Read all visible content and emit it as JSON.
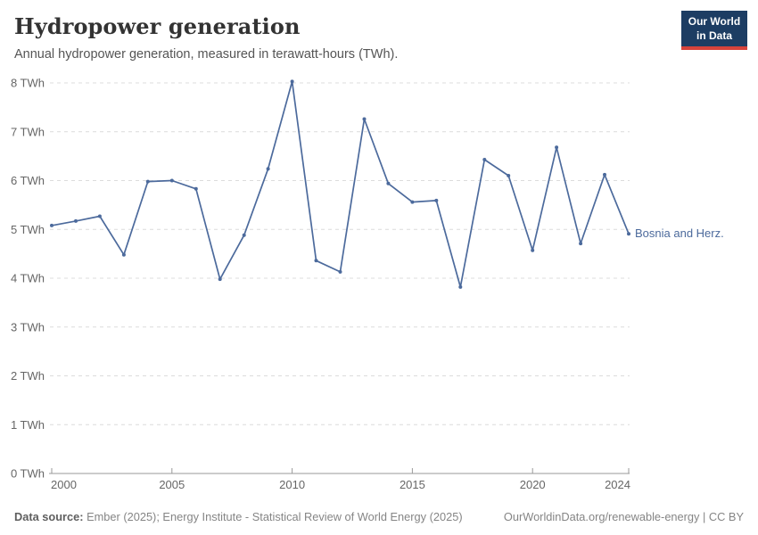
{
  "header": {
    "title": "Hydropower generation",
    "subtitle": "Annual hydropower generation, measured in terawatt-hours (TWh)."
  },
  "logo": {
    "line1": "Our World",
    "line2": "in Data",
    "bg_color": "#1d3d63",
    "accent_color": "#d7433b"
  },
  "chart_data": {
    "type": "line",
    "title": "Hydropower generation",
    "ylabel": "",
    "xlabel": "",
    "unit": "TWh",
    "grid": "horizontal-dashed",
    "legend_position": "end-of-line",
    "xlim": [
      2000,
      2024
    ],
    "ylim": [
      0,
      8
    ],
    "x_ticks": [
      2000,
      2005,
      2010,
      2015,
      2020,
      2024
    ],
    "y_ticks": [
      0,
      1,
      2,
      3,
      4,
      5,
      6,
      7,
      8
    ],
    "y_tick_suffix": " TWh",
    "x": [
      2000,
      2001,
      2002,
      2003,
      2004,
      2005,
      2006,
      2007,
      2008,
      2009,
      2010,
      2011,
      2012,
      2013,
      2014,
      2015,
      2016,
      2017,
      2018,
      2019,
      2020,
      2021,
      2022,
      2023,
      2024
    ],
    "series": [
      {
        "name": "Bosnia and Herz.",
        "color": "#4C6A9C",
        "values": [
          5.08,
          5.17,
          5.27,
          4.48,
          5.98,
          6.0,
          5.83,
          3.98,
          4.88,
          6.24,
          8.03,
          4.36,
          4.13,
          7.26,
          5.94,
          5.56,
          5.59,
          3.82,
          6.43,
          6.1,
          4.57,
          6.68,
          4.71,
          6.12,
          4.91
        ]
      }
    ],
    "colors": {
      "grid": "#dcdcdc",
      "axis": "#9a9a9a",
      "tick_text": "#666666"
    }
  },
  "footer": {
    "source_label": "Data source:",
    "source_text": " Ember (2025); Energy Institute - Statistical Review of World Energy (2025)",
    "credit": "OurWorldinData.org/renewable-energy | CC BY"
  }
}
